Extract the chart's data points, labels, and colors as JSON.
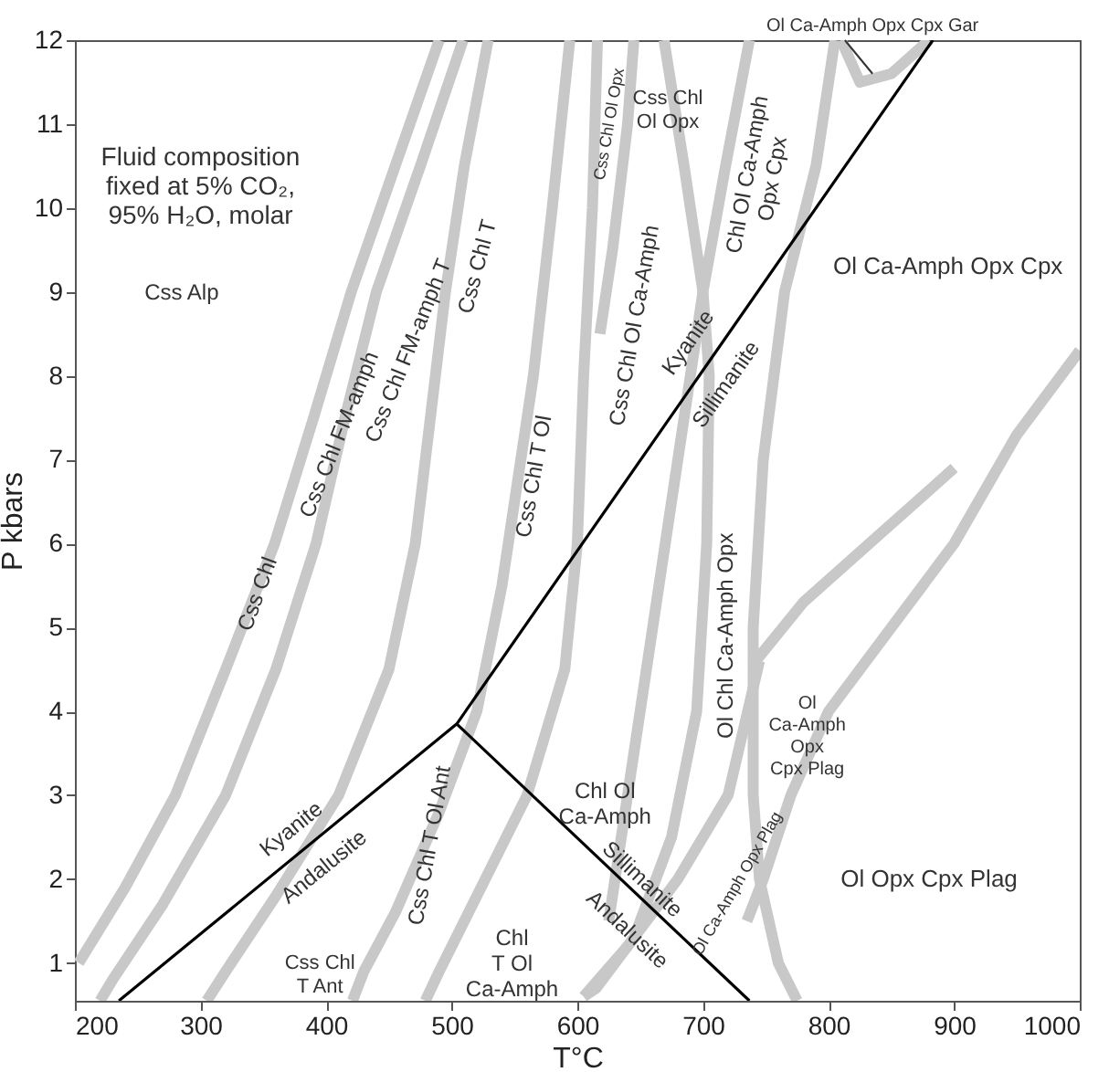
{
  "chart_data": {
    "type": "line",
    "xlabel": "T°C",
    "ylabel": "P kbars",
    "xlim": [
      200,
      1000
    ],
    "ylim": [
      0.55,
      12
    ],
    "xticks": [
      200,
      300,
      400,
      500,
      600,
      700,
      800,
      900,
      1000
    ],
    "yticks": [
      1,
      2,
      3,
      4,
      5,
      6,
      7,
      8,
      9,
      10,
      11,
      12
    ],
    "grid": false,
    "marker": "none",
    "series": [
      {
        "color": "#c8c8c8",
        "x": [
          490,
          455,
          420,
          390,
          359,
          320,
          280,
          240,
          203
        ],
        "values": [
          12,
          10.5,
          9,
          7.5,
          6,
          4.5,
          3,
          1.9,
          1.0
        ]
      },
      {
        "color": "#c8c8c8",
        "x": [
          509,
          475,
          440,
          415,
          392,
          360,
          320,
          270,
          230,
          220
        ],
        "values": [
          12,
          10.5,
          9,
          7.5,
          6,
          4.5,
          3,
          1.7,
          0.8,
          0.55
        ]
      },
      {
        "color": "#c8c8c8",
        "x": [
          529,
          510,
          495,
          483,
          471,
          450,
          410,
          360,
          320,
          305
        ],
        "values": [
          12,
          10.5,
          9,
          7.5,
          6,
          4.5,
          3,
          1.8,
          0.9,
          0.55
        ]
      },
      {
        "color": "#c8c8c8",
        "x": [
          594,
          580,
          565,
          550,
          540,
          520,
          490,
          455,
          430,
          421
        ],
        "values": [
          12,
          10,
          8,
          6.5,
          5.5,
          4,
          2.8,
          1.6,
          0.9,
          0.55
        ]
      },
      {
        "color": "#c8c8c8",
        "x": [
          616,
          612,
          605,
          600,
          590,
          560,
          520,
          490,
          479
        ],
        "values": [
          12,
          10,
          8,
          6,
          4.5,
          3,
          1.8,
          0.9,
          0.55
        ]
      },
      {
        "color": "#c8c8c8",
        "x": [
          645,
          640,
          628,
          618
        ],
        "values": [
          12,
          11,
          9.5,
          8.5
        ]
      },
      {
        "color": "#c8c8c8",
        "x": [
          669,
          685,
          700,
          705,
          703,
          695,
          675,
          645,
          615,
          605
        ],
        "values": [
          12,
          10.5,
          9,
          8,
          6,
          4,
          2.5,
          1.3,
          0.7,
          0.6
        ]
      },
      {
        "color": "#c8c8c8",
        "x": [
          737,
          718,
          700,
          685,
          660,
          640,
          625
        ],
        "values": [
          12,
          10.5,
          9,
          7.5,
          5,
          3,
          1.5
        ]
      },
      {
        "color": "#c8c8c8",
        "x": [
          805,
          790,
          765,
          748,
          740,
          740,
          745,
          760,
          775
        ],
        "values": [
          12,
          10.5,
          9,
          7,
          5,
          3,
          2,
          1,
          0.55
        ]
      },
      {
        "color": "#c8c8c8",
        "x": [
          810,
          825,
          850,
          880
        ],
        "values": [
          12,
          11.5,
          11.6,
          12
        ]
      },
      {
        "color": "#c8c8c8",
        "x": [
          1000,
          950,
          900,
          850,
          800,
          770,
          748,
          735
        ],
        "values": [
          8.3,
          7.3,
          6,
          5,
          4,
          3,
          2,
          1.5
        ]
      },
      {
        "color": "#c8c8c8",
        "x": [
          742,
          780,
          840,
          900
        ],
        "values": [
          4.6,
          5.3,
          6.1,
          6.9
        ]
      },
      {
        "color": "#c8c8c8",
        "x": [
          605,
          640,
          680,
          720,
          745
        ],
        "values": [
          0.6,
          1.2,
          2,
          3,
          4.6
        ]
      },
      {
        "color": "#000000",
        "x": [
          235,
          504,
          883
        ],
        "values": [
          0.55,
          3.85,
          12
        ]
      },
      {
        "color": "#000000",
        "x": [
          504,
          737
        ],
        "values": [
          3.85,
          0.55
        ]
      }
    ],
    "annotations": [
      "Fluid composition\nfixed at 5% CO₂,\n95% H₂O, molar",
      "Css Alp",
      "Css Chl",
      "Css Chl FM-amph",
      "Css Chl FM-amph T",
      "Css Chl T",
      "Css Chl T Ol",
      "Css Chl Ol Opx",
      "Css Chl\nOl Opx",
      "Css Chl Ol Ca-Amph",
      "Chl Ol Ca-Amph\nOpx Cpx",
      "Kyanite",
      "Sillimanite",
      "Ol Ca-Amph Opx Cpx",
      "Ol Ca-Amph Opx Cpx Gar",
      "Ol Chl Ca-Amph Opx",
      "Ol\nCa-Amph\nOpx\nCpx Plag",
      "Chl Ol\nCa-Amph",
      "Sillimanite",
      "Andalusite",
      "Ol Ca-Amph Opx Plag",
      "Ol Opx Cpx Plag",
      "Kyanite",
      "Andalusite",
      "Css Chl T Ol Ant",
      "Chl\nT Ol\nCa-Amph",
      "Css Chl\nT Ant"
    ]
  }
}
